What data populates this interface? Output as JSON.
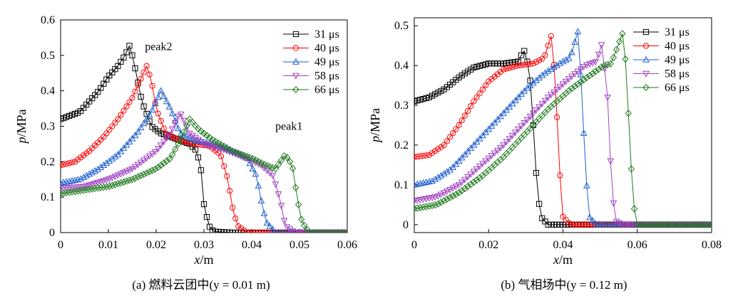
{
  "chart_data": [
    {
      "type": "line",
      "caption": "(a) 燃料云团中(y = 0.01 m)",
      "xlabel_var": "x",
      "xlabel_unit": "/m",
      "ylabel_var": "p",
      "ylabel_unit": "/MPa",
      "xlim": [
        0,
        0.06
      ],
      "ylim": [
        0,
        0.6
      ],
      "xticks": [
        "0",
        "0.01",
        "0.02",
        "0.03",
        "0.04",
        "0.05",
        "0.06"
      ],
      "yticks": [
        "0",
        "0.1",
        "0.2",
        "0.3",
        "0.4",
        "0.5",
        "0.6"
      ],
      "legend_position": "top-right",
      "annotations": [
        {
          "text": "peak2",
          "x": 0.0205,
          "y": 0.515
        },
        {
          "text": "peak1",
          "x": 0.0478,
          "y": 0.29
        }
      ],
      "series": [
        {
          "name": "31 μs",
          "color": "#000000",
          "marker": "square",
          "points": [
            [
              0,
              0.32
            ],
            [
              0.002,
              0.33
            ],
            [
              0.004,
              0.34
            ],
            [
              0.006,
              0.37
            ],
            [
              0.008,
              0.4
            ],
            [
              0.01,
              0.44
            ],
            [
              0.012,
              0.47
            ],
            [
              0.0135,
              0.5
            ],
            [
              0.0145,
              0.53
            ],
            [
              0.0155,
              0.47
            ],
            [
              0.017,
              0.37
            ],
            [
              0.019,
              0.3
            ],
            [
              0.021,
              0.28
            ],
            [
              0.024,
              0.265
            ],
            [
              0.027,
              0.25
            ],
            [
              0.0285,
              0.23
            ],
            [
              0.0295,
              0.17
            ],
            [
              0.03,
              0.08
            ],
            [
              0.031,
              0.02
            ],
            [
              0.032,
              0.003
            ],
            [
              0.036,
              0
            ],
            [
              0.06,
              0
            ]
          ]
        },
        {
          "name": "40 μs",
          "color": "#ff0000",
          "marker": "circle",
          "points": [
            [
              0,
              0.19
            ],
            [
              0.003,
              0.2
            ],
            [
              0.006,
              0.23
            ],
            [
              0.009,
              0.27
            ],
            [
              0.012,
              0.32
            ],
            [
              0.015,
              0.38
            ],
            [
              0.017,
              0.44
            ],
            [
              0.018,
              0.47
            ],
            [
              0.019,
              0.43
            ],
            [
              0.02,
              0.35
            ],
            [
              0.022,
              0.28
            ],
            [
              0.025,
              0.26
            ],
            [
              0.028,
              0.25
            ],
            [
              0.031,
              0.245
            ],
            [
              0.0335,
              0.22
            ],
            [
              0.035,
              0.15
            ],
            [
              0.036,
              0.07
            ],
            [
              0.037,
              0.02
            ],
            [
              0.039,
              0
            ],
            [
              0.06,
              0
            ]
          ]
        },
        {
          "name": "49 μs",
          "color": "#1f5fd0",
          "marker": "triangle-up",
          "points": [
            [
              0,
              0.14
            ],
            [
              0.004,
              0.15
            ],
            [
              0.008,
              0.18
            ],
            [
              0.012,
              0.22
            ],
            [
              0.016,
              0.28
            ],
            [
              0.019,
              0.34
            ],
            [
              0.021,
              0.4
            ],
            [
              0.023,
              0.35
            ],
            [
              0.025,
              0.28
            ],
            [
              0.028,
              0.26
            ],
            [
              0.032,
              0.25
            ],
            [
              0.036,
              0.23
            ],
            [
              0.039,
              0.21
            ],
            [
              0.041,
              0.16
            ],
            [
              0.042,
              0.09
            ],
            [
              0.043,
              0.03
            ],
            [
              0.045,
              0
            ],
            [
              0.06,
              0
            ]
          ]
        },
        {
          "name": "58 μs",
          "color": "#a040c0",
          "marker": "triangle-down",
          "points": [
            [
              0,
              0.125
            ],
            [
              0.005,
              0.13
            ],
            [
              0.01,
              0.15
            ],
            [
              0.015,
              0.18
            ],
            [
              0.02,
              0.23
            ],
            [
              0.023,
              0.28
            ],
            [
              0.025,
              0.34
            ],
            [
              0.027,
              0.28
            ],
            [
              0.03,
              0.25
            ],
            [
              0.034,
              0.235
            ],
            [
              0.038,
              0.215
            ],
            [
              0.042,
              0.19
            ],
            [
              0.0445,
              0.16
            ],
            [
              0.046,
              0.09
            ],
            [
              0.047,
              0.02
            ],
            [
              0.049,
              0
            ],
            [
              0.06,
              0
            ]
          ]
        },
        {
          "name": "66 μs",
          "color": "#207a20",
          "marker": "diamond",
          "points": [
            [
              0,
              0.11
            ],
            [
              0.005,
              0.12
            ],
            [
              0.01,
              0.13
            ],
            [
              0.015,
              0.15
            ],
            [
              0.02,
              0.18
            ],
            [
              0.023,
              0.21
            ],
            [
              0.025,
              0.26
            ],
            [
              0.027,
              0.32
            ],
            [
              0.029,
              0.29
            ],
            [
              0.032,
              0.26
            ],
            [
              0.036,
              0.23
            ],
            [
              0.04,
              0.21
            ],
            [
              0.043,
              0.19
            ],
            [
              0.045,
              0.18
            ],
            [
              0.047,
              0.22
            ],
            [
              0.0485,
              0.19
            ],
            [
              0.0495,
              0.1
            ],
            [
              0.0505,
              0.03
            ],
            [
              0.052,
              0
            ],
            [
              0.06,
              0
            ]
          ]
        }
      ]
    },
    {
      "type": "line",
      "caption": "(b) 气相场中(y = 0.12 m)",
      "xlabel_var": "x",
      "xlabel_unit": "/m",
      "ylabel_var": "p",
      "ylabel_unit": "/MPa",
      "xlim": [
        0,
        0.08
      ],
      "ylim": [
        -0.02,
        0.52
      ],
      "xticks": [
        "0",
        "0.02",
        "0.04",
        "0.06",
        "0.08"
      ],
      "yticks": [
        "0",
        "0.1",
        "0.2",
        "0.3",
        "0.4",
        "0.5"
      ],
      "legend_position": "top-right",
      "series": [
        {
          "name": "31 μs",
          "color": "#000000",
          "marker": "square",
          "points": [
            [
              0,
              0.31
            ],
            [
              0.004,
              0.32
            ],
            [
              0.008,
              0.34
            ],
            [
              0.012,
              0.37
            ],
            [
              0.016,
              0.395
            ],
            [
              0.02,
              0.405
            ],
            [
              0.024,
              0.405
            ],
            [
              0.028,
              0.41
            ],
            [
              0.0295,
              0.44
            ],
            [
              0.031,
              0.39
            ],
            [
              0.032,
              0.25
            ],
            [
              0.033,
              0.1
            ],
            [
              0.034,
              0.02
            ],
            [
              0.036,
              0
            ],
            [
              0.08,
              0
            ]
          ]
        },
        {
          "name": "40 μs",
          "color": "#ff0000",
          "marker": "circle",
          "points": [
            [
              0,
              0.17
            ],
            [
              0.004,
              0.175
            ],
            [
              0.008,
              0.2
            ],
            [
              0.012,
              0.25
            ],
            [
              0.016,
              0.31
            ],
            [
              0.02,
              0.36
            ],
            [
              0.024,
              0.39
            ],
            [
              0.028,
              0.4
            ],
            [
              0.032,
              0.405
            ],
            [
              0.035,
              0.42
            ],
            [
              0.037,
              0.48
            ],
            [
              0.038,
              0.35
            ],
            [
              0.039,
              0.15
            ],
            [
              0.04,
              0.02
            ],
            [
              0.042,
              0
            ],
            [
              0.08,
              0
            ]
          ]
        },
        {
          "name": "49 μs",
          "color": "#1f5fd0",
          "marker": "triangle-up",
          "points": [
            [
              0,
              0.1
            ],
            [
              0.005,
              0.11
            ],
            [
              0.01,
              0.14
            ],
            [
              0.015,
              0.19
            ],
            [
              0.02,
              0.24
            ],
            [
              0.025,
              0.29
            ],
            [
              0.03,
              0.34
            ],
            [
              0.035,
              0.38
            ],
            [
              0.04,
              0.41
            ],
            [
              0.042,
              0.42
            ],
            [
              0.044,
              0.485
            ],
            [
              0.045,
              0.35
            ],
            [
              0.046,
              0.15
            ],
            [
              0.047,
              0.02
            ],
            [
              0.049,
              0
            ],
            [
              0.08,
              0
            ]
          ]
        },
        {
          "name": "58 μs",
          "color": "#a040c0",
          "marker": "triangle-down",
          "points": [
            [
              0,
              0.06
            ],
            [
              0.006,
              0.07
            ],
            [
              0.012,
              0.1
            ],
            [
              0.018,
              0.15
            ],
            [
              0.024,
              0.2
            ],
            [
              0.03,
              0.26
            ],
            [
              0.036,
              0.32
            ],
            [
              0.042,
              0.37
            ],
            [
              0.046,
              0.4
            ],
            [
              0.049,
              0.41
            ],
            [
              0.0505,
              0.455
            ],
            [
              0.052,
              0.32
            ],
            [
              0.053,
              0.12
            ],
            [
              0.054,
              0.01
            ],
            [
              0.056,
              0
            ],
            [
              0.08,
              0
            ]
          ]
        },
        {
          "name": "66 μs",
          "color": "#207a20",
          "marker": "diamond",
          "points": [
            [
              0,
              0.04
            ],
            [
              0.006,
              0.05
            ],
            [
              0.012,
              0.08
            ],
            [
              0.018,
              0.12
            ],
            [
              0.024,
              0.17
            ],
            [
              0.03,
              0.23
            ],
            [
              0.036,
              0.29
            ],
            [
              0.042,
              0.34
            ],
            [
              0.048,
              0.38
            ],
            [
              0.051,
              0.4
            ],
            [
              0.053,
              0.405
            ],
            [
              0.056,
              0.48
            ],
            [
              0.057,
              0.4
            ],
            [
              0.058,
              0.2
            ],
            [
              0.059,
              0.05
            ],
            [
              0.06,
              0
            ],
            [
              0.08,
              0
            ]
          ]
        }
      ]
    }
  ]
}
